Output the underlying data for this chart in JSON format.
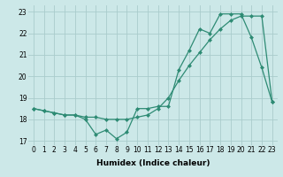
{
  "line1_x": [
    0,
    1,
    2,
    3,
    4,
    5,
    6,
    7,
    8,
    9,
    10,
    11,
    12,
    13,
    14,
    15,
    16,
    17,
    18,
    19,
    20,
    21,
    22,
    23
  ],
  "line1_y": [
    18.5,
    18.4,
    18.3,
    18.2,
    18.2,
    18.0,
    17.3,
    17.5,
    17.1,
    17.4,
    18.5,
    18.5,
    18.6,
    18.6,
    20.3,
    21.2,
    22.2,
    22.0,
    22.9,
    22.9,
    22.9,
    21.8,
    20.4,
    18.8
  ],
  "line2_x": [
    0,
    1,
    2,
    3,
    4,
    5,
    6,
    7,
    8,
    9,
    10,
    11,
    12,
    13,
    14,
    15,
    16,
    17,
    18,
    19,
    20,
    21,
    22,
    23
  ],
  "line2_y": [
    18.5,
    18.4,
    18.3,
    18.2,
    18.2,
    18.1,
    18.1,
    18.0,
    18.0,
    18.0,
    18.1,
    18.2,
    18.5,
    19.0,
    19.8,
    20.5,
    21.1,
    21.7,
    22.2,
    22.6,
    22.8,
    22.8,
    22.8,
    18.8
  ],
  "line_color": "#2e8b74",
  "bg_color": "#cce8e8",
  "grid_color": "#aacccc",
  "xlabel": "Humidex (Indice chaleur)",
  "xlim": [
    -0.5,
    23.5
  ],
  "ylim": [
    16.8,
    23.3
  ],
  "yticks": [
    17,
    18,
    19,
    20,
    21,
    22,
    23
  ],
  "xticks": [
    0,
    1,
    2,
    3,
    4,
    5,
    6,
    7,
    8,
    9,
    10,
    11,
    12,
    13,
    14,
    15,
    16,
    17,
    18,
    19,
    20,
    21,
    22,
    23
  ],
  "marker": "D",
  "markersize": 2,
  "linewidth": 0.9,
  "xlabel_fontsize": 6.5,
  "tick_fontsize": 5.5
}
